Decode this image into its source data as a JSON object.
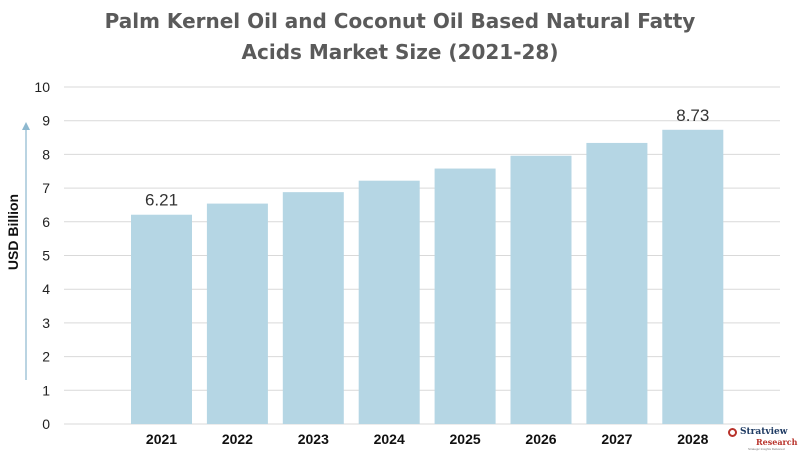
{
  "chart_data": {
    "type": "bar",
    "title_lines": [
      "Palm Kernel Oil and Coconut Oil Based Natural Fatty",
      "Acids Market Size (2021-28)"
    ],
    "ylabel": "USD Billion",
    "categories": [
      "2021",
      "2022",
      "2023",
      "2024",
      "2025",
      "2026",
      "2027",
      "2028"
    ],
    "values": [
      6.21,
      6.54,
      6.88,
      7.22,
      7.58,
      7.96,
      8.34,
      8.73
    ],
    "data_labels": [
      {
        "index": 0,
        "text": "6.21"
      },
      {
        "index": 7,
        "text": "8.73"
      }
    ],
    "ylim": [
      0,
      10
    ],
    "yticks": [
      "0",
      "1",
      "2",
      "3",
      "4",
      "5",
      "6",
      "7",
      "8",
      "9",
      "10"
    ],
    "grid": true,
    "bar_color": "#b5d6e4",
    "grid_color": "#d9d9d9"
  },
  "branding": {
    "logo_name": "Stratview",
    "logo_sub": "Research",
    "logo_tagline": "Strategic Insights Delivered"
  }
}
